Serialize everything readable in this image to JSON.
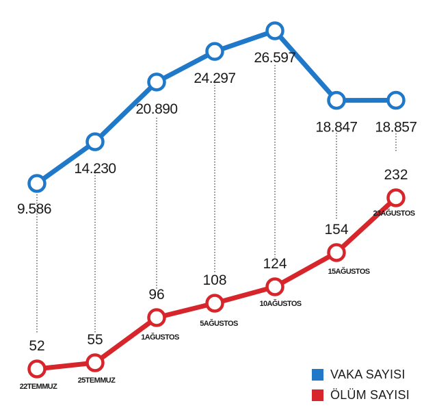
{
  "chart_data": {
    "type": "line",
    "categories": [
      "22TEMMUZ",
      "25TEMMUZ",
      "1AĞUSTOS",
      "5AĞUSTOS",
      "10AĞUSTOS",
      "15AĞUSTOS",
      "23AĞUSTOS"
    ],
    "series": [
      {
        "name": "VAKA SAYISI",
        "color": "#1f78c8",
        "values": [
          9586,
          14230,
          20890,
          24297,
          26597,
          18847,
          18857
        ],
        "labels": [
          "9.586",
          "14.230",
          "20.890",
          "24.297",
          "26.597",
          "18.847",
          "18.857"
        ]
      },
      {
        "name": "ÖLÜM SAYISI",
        "color": "#d7262b",
        "values": [
          52,
          55,
          96,
          108,
          124,
          154,
          232
        ],
        "labels": [
          "52",
          "55",
          "96",
          "108",
          "124",
          "154",
          "232"
        ]
      }
    ],
    "legend_position": "bottom-right",
    "grid": false
  },
  "legend": {
    "items": [
      {
        "label": "VAKA SAYISI",
        "color": "#1f78c8"
      },
      {
        "label": "ÖLÜM SAYISI",
        "color": "#d7262b"
      }
    ]
  }
}
